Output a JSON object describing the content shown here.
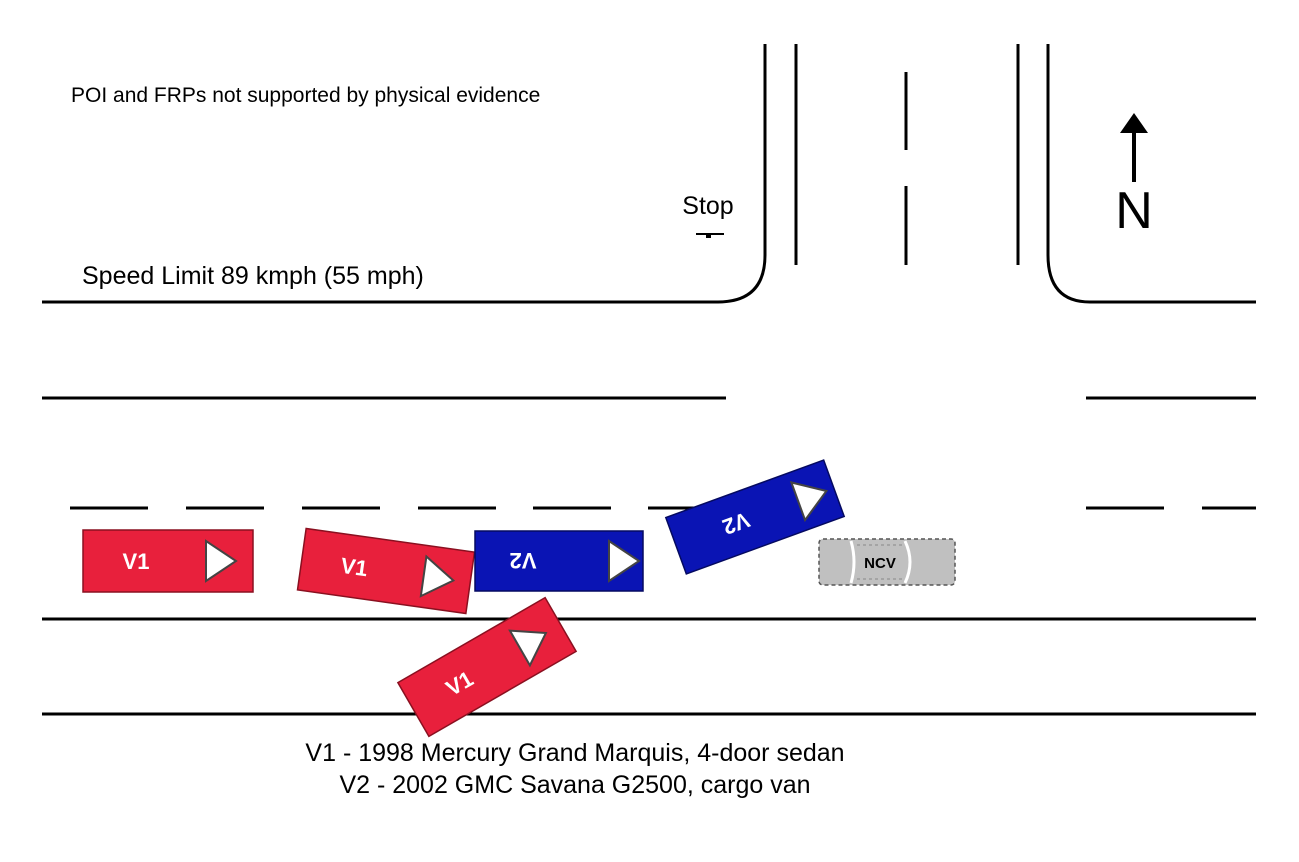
{
  "note": "POI and FRPs not supported by physical evidence",
  "stop_label": "Stop",
  "speed_limit": "Speed Limit 89 kmph (55 mph)",
  "north_label": "N",
  "vehicles": {
    "v1_label": "V1",
    "v2_label": "V2",
    "ncv_label": "NCV",
    "v1_color": "#e8203c",
    "v2_color": "#0a14b4",
    "ncv_color": "#c0c0c0"
  },
  "legend": {
    "v1": "V1 - 1998 Mercury Grand Marquis, 4-door sedan",
    "v2": "V2 - 2002 GMC Savana G2500, cargo van"
  }
}
